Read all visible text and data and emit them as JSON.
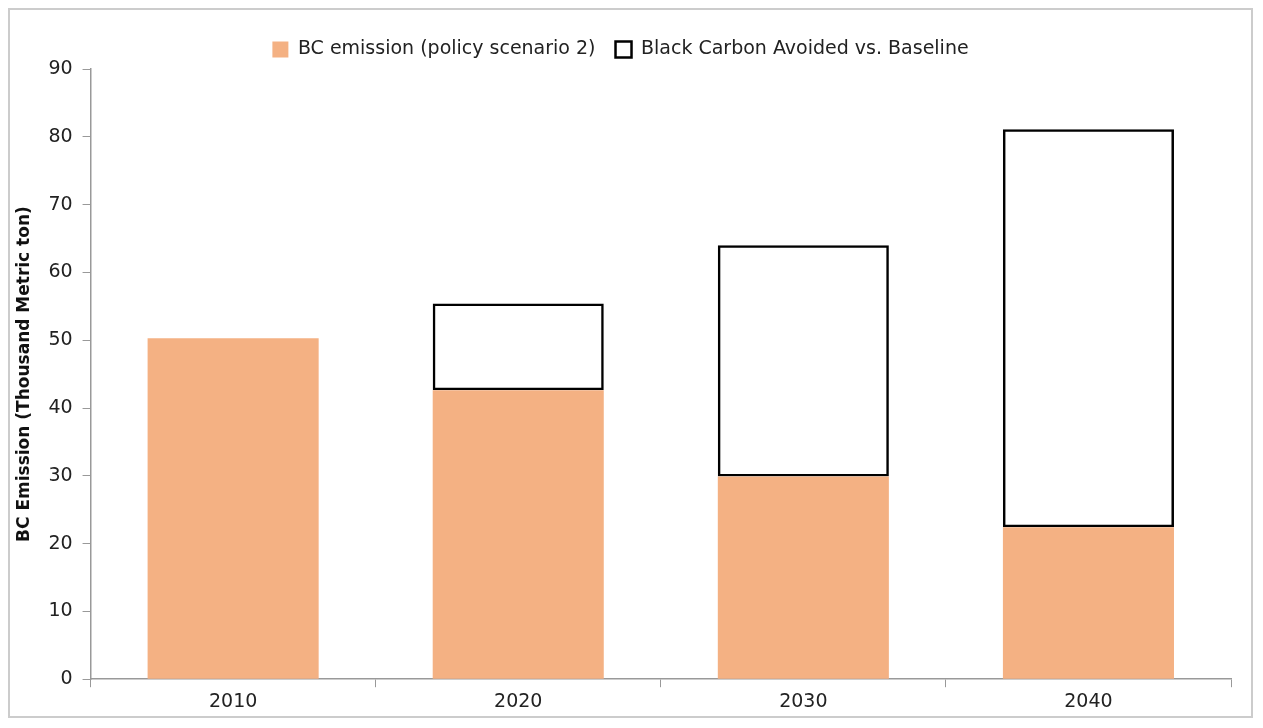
{
  "chart_data": {
    "type": "bar",
    "stacked": true,
    "ylabel": "BC Emission (Thousand Metric ton)",
    "categories": [
      "2010",
      "2020",
      "2030",
      "2040"
    ],
    "series": [
      {
        "name": "BC emission (policy scenario 2)",
        "color": "#f4b183",
        "values": [
          50.3,
          42.6,
          29.9,
          22.4
        ]
      },
      {
        "name": "Black Carbon Avoided vs. Baseline",
        "color": "#000000",
        "line_style": "dashed",
        "values": [
          null,
          12.8,
          34.1,
          58.7
        ]
      }
    ],
    "ylim": [
      0,
      90
    ],
    "yticks": [
      0,
      10,
      20,
      30,
      40,
      50,
      60,
      70,
      80,
      90
    ],
    "grid": false,
    "legend": "top"
  }
}
